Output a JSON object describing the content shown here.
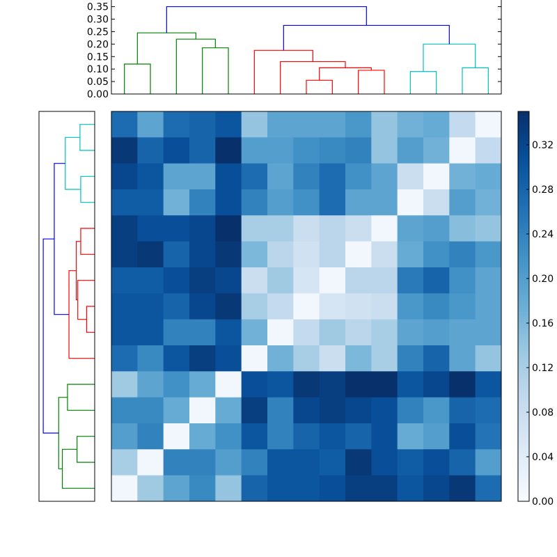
{
  "chart_data": {
    "type": "heatmap",
    "n": 15,
    "colorbar": {
      "vmin": 0.0,
      "vmax": 0.35,
      "ticks": [
        0.0,
        0.04,
        0.08,
        0.12,
        0.16,
        0.2,
        0.24,
        0.28,
        0.32
      ],
      "tick_labels": [
        "0.00",
        "0.04",
        "0.08",
        "0.12",
        "0.16",
        "0.20",
        "0.24",
        "0.28",
        "0.32"
      ]
    },
    "top_dendrogram": {
      "ylim": [
        0,
        0.36
      ],
      "yticks": [
        0.0,
        0.05,
        0.1,
        0.15,
        0.2,
        0.25,
        0.3,
        0.35
      ],
      "ytick_labels": [
        "0.00",
        "0.05",
        "0.10",
        "0.15",
        "0.20",
        "0.25",
        "0.30",
        "0.35"
      ],
      "links": [
        {
          "x": [
            0,
            1
          ],
          "h": [
            0,
            0
          ],
          "top": 0.12,
          "color": "#008000"
        },
        {
          "x": [
            3,
            4
          ],
          "h": [
            0,
            0
          ],
          "top": 0.185,
          "color": "#008000"
        },
        {
          "x": [
            2,
            3.5
          ],
          "h": [
            0,
            0.185
          ],
          "top": 0.22,
          "color": "#008000"
        },
        {
          "x": [
            0.5,
            2.75
          ],
          "h": [
            0.12,
            0.22
          ],
          "top": 0.245,
          "color": "#008000"
        },
        {
          "x": [
            7,
            8
          ],
          "h": [
            0,
            0
          ],
          "top": 0.055,
          "color": "#ff0000"
        },
        {
          "x": [
            9,
            10
          ],
          "h": [
            0,
            0
          ],
          "top": 0.095,
          "color": "#ff0000"
        },
        {
          "x": [
            7.5,
            9.5
          ],
          "h": [
            0.055,
            0.095
          ],
          "top": 0.105,
          "color": "#ff0000"
        },
        {
          "x": [
            6,
            8.5
          ],
          "h": [
            0,
            0.105
          ],
          "top": 0.13,
          "color": "#ff0000"
        },
        {
          "x": [
            5,
            7.25
          ],
          "h": [
            0,
            0.13
          ],
          "top": 0.175,
          "color": "#ff0000"
        },
        {
          "x": [
            11,
            12
          ],
          "h": [
            0,
            0
          ],
          "top": 0.09,
          "color": "#00bfbf"
        },
        {
          "x": [
            13,
            14
          ],
          "h": [
            0,
            0
          ],
          "top": 0.105,
          "color": "#00bfbf"
        },
        {
          "x": [
            11.5,
            13.5
          ],
          "h": [
            0.09,
            0.105
          ],
          "top": 0.2,
          "color": "#00bfbf"
        },
        {
          "x": [
            6.125,
            12.5
          ],
          "h": [
            0.175,
            0.2
          ],
          "top": 0.275,
          "color": "#0000ff"
        },
        {
          "x": [
            1.625,
            9.3125
          ],
          "h": [
            0.245,
            0.275
          ],
          "top": 0.35,
          "color": "#0000ff"
        }
      ]
    },
    "left_dendrogram": {
      "xlim": [
        0,
        0.36
      ],
      "links": [
        {
          "y": [
            0,
            1
          ],
          "h": [
            0,
            0
          ],
          "top": 0.1,
          "color": "#00bfbf"
        },
        {
          "y": [
            2,
            3
          ],
          "h": [
            0,
            0
          ],
          "top": 0.095,
          "color": "#00bfbf"
        },
        {
          "y": [
            0.5,
            2.5
          ],
          "h": [
            0.1,
            0.095
          ],
          "top": 0.2,
          "color": "#00bfbf"
        },
        {
          "y": [
            4,
            5
          ],
          "h": [
            0,
            0
          ],
          "top": 0.095,
          "color": "#ff0000"
        },
        {
          "y": [
            7,
            8
          ],
          "h": [
            0,
            0
          ],
          "top": 0.055,
          "color": "#ff0000"
        },
        {
          "y": [
            6,
            7.5
          ],
          "h": [
            0,
            0.055
          ],
          "top": 0.115,
          "color": "#ff0000"
        },
        {
          "y": [
            4.5,
            6.75
          ],
          "h": [
            0.095,
            0.115
          ],
          "top": 0.125,
          "color": "#ff0000"
        },
        {
          "y": [
            5.625,
            9
          ],
          "h": [
            0.125,
            0
          ],
          "top": 0.175,
          "color": "#ff0000"
        },
        {
          "y": [
            0.5,
            0.5
          ],
          "h": [
            0,
            0
          ],
          "top": 0,
          "color": "#00bfbf"
        },
        {
          "y": [
            1.5,
            7.3125
          ],
          "h": [
            0.2,
            0.175
          ],
          "top": 0.275,
          "color": "#0000ff"
        },
        {
          "y": [
            10,
            11
          ],
          "h": [
            0,
            0
          ],
          "top": 0.185,
          "color": "#008000"
        },
        {
          "y": [
            12,
            13
          ],
          "h": [
            0,
            0
          ],
          "top": 0.12,
          "color": "#008000"
        },
        {
          "y": [
            14,
            12.5
          ],
          "h": [
            0,
            0.12
          ],
          "top": 0.22,
          "color": "#008000"
        },
        {
          "y": [
            10.5,
            13.25
          ],
          "h": [
            0.185,
            0.22
          ],
          "top": 0.245,
          "color": "#008000"
        },
        {
          "y": [
            4.40625,
            11.875
          ],
          "h": [
            0.275,
            0.245
          ],
          "top": 0.35,
          "color": "#0000ff"
        }
      ]
    },
    "matrix": [
      [
        0.27,
        0.19,
        0.27,
        0.28,
        0.3,
        0.14,
        0.19,
        0.19,
        0.19,
        0.21,
        0.14,
        0.17,
        0.18,
        0.09,
        0.01
      ],
      [
        0.34,
        0.28,
        0.31,
        0.28,
        0.35,
        0.2,
        0.2,
        0.22,
        0.23,
        0.24,
        0.14,
        0.2,
        0.17,
        0.01,
        0.09
      ],
      [
        0.32,
        0.3,
        0.19,
        0.19,
        0.31,
        0.27,
        0.19,
        0.24,
        0.27,
        0.22,
        0.19,
        0.08,
        0.01,
        0.17,
        0.18
      ],
      [
        0.29,
        0.29,
        0.17,
        0.24,
        0.31,
        0.24,
        0.2,
        0.22,
        0.27,
        0.19,
        0.19,
        0.01,
        0.08,
        0.2,
        0.17
      ],
      [
        0.33,
        0.31,
        0.31,
        0.32,
        0.35,
        0.12,
        0.12,
        0.08,
        0.1,
        0.08,
        0.01,
        0.19,
        0.2,
        0.15,
        0.14
      ],
      [
        0.33,
        0.34,
        0.28,
        0.32,
        0.34,
        0.16,
        0.1,
        0.07,
        0.1,
        0.01,
        0.08,
        0.18,
        0.22,
        0.24,
        0.21
      ],
      [
        0.29,
        0.29,
        0.31,
        0.33,
        0.32,
        0.08,
        0.13,
        0.06,
        0.01,
        0.1,
        0.1,
        0.25,
        0.28,
        0.22,
        0.19
      ],
      [
        0.3,
        0.3,
        0.28,
        0.32,
        0.34,
        0.12,
        0.09,
        0.01,
        0.06,
        0.07,
        0.08,
        0.21,
        0.23,
        0.21,
        0.19
      ],
      [
        0.3,
        0.3,
        0.24,
        0.24,
        0.3,
        0.17,
        0.01,
        0.09,
        0.13,
        0.1,
        0.12,
        0.19,
        0.2,
        0.19,
        0.19
      ],
      [
        0.27,
        0.23,
        0.3,
        0.33,
        0.31,
        0.01,
        0.17,
        0.12,
        0.08,
        0.16,
        0.12,
        0.24,
        0.28,
        0.19,
        0.14
      ],
      [
        0.13,
        0.19,
        0.22,
        0.18,
        0.01,
        0.31,
        0.3,
        0.34,
        0.33,
        0.35,
        0.36,
        0.3,
        0.32,
        0.35,
        0.3
      ],
      [
        0.23,
        0.23,
        0.18,
        0.01,
        0.18,
        0.33,
        0.24,
        0.32,
        0.33,
        0.32,
        0.31,
        0.24,
        0.21,
        0.28,
        0.27
      ],
      [
        0.2,
        0.24,
        0.01,
        0.18,
        0.22,
        0.3,
        0.24,
        0.28,
        0.3,
        0.28,
        0.31,
        0.18,
        0.2,
        0.31,
        0.26
      ],
      [
        0.12,
        0.01,
        0.24,
        0.24,
        0.2,
        0.24,
        0.3,
        0.3,
        0.29,
        0.34,
        0.31,
        0.29,
        0.31,
        0.28,
        0.2
      ],
      [
        0.01,
        0.13,
        0.19,
        0.23,
        0.14,
        0.28,
        0.3,
        0.3,
        0.31,
        0.33,
        0.33,
        0.3,
        0.32,
        0.34,
        0.27
      ]
    ]
  }
}
